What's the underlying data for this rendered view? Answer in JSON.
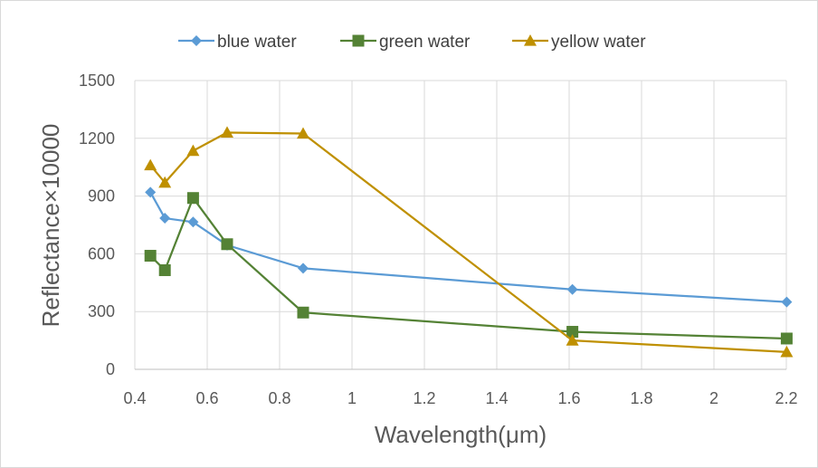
{
  "chart_data": {
    "type": "line",
    "title": "",
    "xlabel": "Wavelength(μm)",
    "ylabel": "Reflectance×10000",
    "xlim": [
      0.4,
      2.2
    ],
    "ylim": [
      0,
      1500
    ],
    "x_ticks": [
      0.4,
      0.6,
      0.8,
      1,
      1.2,
      1.4,
      1.6,
      1.8,
      2,
      2.2
    ],
    "x_tick_labels": [
      "0.4",
      "0.6",
      "0.8",
      "1",
      "1.2",
      "1.4",
      "1.6",
      "1.8",
      "2",
      "2.2"
    ],
    "y_ticks": [
      0,
      300,
      600,
      900,
      1200,
      1500
    ],
    "y_tick_labels": [
      "0",
      "300",
      "600",
      "900",
      "1200",
      "1500"
    ],
    "grid": true,
    "legend_position": "top-center",
    "series": [
      {
        "name": "blue water",
        "color": "#5b9bd5",
        "marker": "diamond",
        "x": [
          0.443,
          0.483,
          0.561,
          0.655,
          0.865,
          1.609,
          2.201
        ],
        "y": [
          920,
          785,
          765,
          645,
          525,
          415,
          350
        ]
      },
      {
        "name": "green water",
        "color": "#548235",
        "marker": "square",
        "x": [
          0.443,
          0.483,
          0.561,
          0.655,
          0.865,
          1.609,
          2.201
        ],
        "y": [
          590,
          515,
          890,
          650,
          295,
          195,
          160
        ]
      },
      {
        "name": "yellow water",
        "color": "#bf9000",
        "marker": "triangle",
        "x": [
          0.443,
          0.483,
          0.561,
          0.655,
          0.865,
          1.609,
          2.201
        ],
        "y": [
          1060,
          970,
          1135,
          1230,
          1225,
          150,
          90
        ]
      }
    ]
  }
}
